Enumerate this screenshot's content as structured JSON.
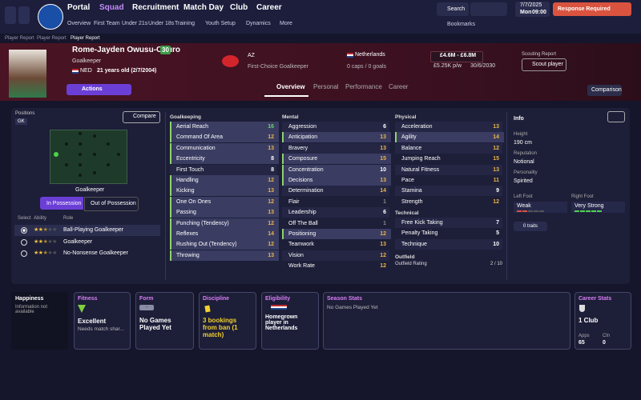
{
  "nav": {
    "menus": [
      "Portal",
      "Squad",
      "Recruitment",
      "Match Day",
      "Club",
      "Career"
    ],
    "submenu": [
      "Overview",
      "First Team",
      "Under 21s",
      "Under 18s",
      "Training",
      "Youth Setup",
      "Dynamics",
      "More"
    ],
    "search": "Search",
    "date": "7/7/2025",
    "day": "Mon",
    "time": "09:00",
    "alert": "Response Required",
    "bookmarks": "Bookmarks"
  },
  "breadcrumb": [
    "Player Report",
    "Player Report",
    "Player Report"
  ],
  "player": {
    "name": "Rome-Jayden Owusu-Oduro",
    "number": 30,
    "position": "Goalkeeper",
    "nationality_code": "NED",
    "age": "21 years old (2/7/2004)",
    "actions": "Actions",
    "club": "AZ",
    "squad_status": "First-Choice Goalkeeper",
    "nation": "Netherlands",
    "caps": "0 caps / 0 goals",
    "value": "£4.6M - £6.8M",
    "wage": "£5.25K p/w",
    "contract": "30/6/2030",
    "scouting_title": "Scouting Report",
    "scout_button": "Scout player"
  },
  "tabs": [
    "Overview",
    "Personal",
    "Performance",
    "Career"
  ],
  "comparison": "Comparison",
  "positions": {
    "title": "Positions",
    "code": "GK",
    "compare": "Compare",
    "pitch_label": "Goalkeeper",
    "toggle": [
      "In Possession",
      "Out of Possession"
    ],
    "headers": [
      "Select",
      "Ability",
      "Role"
    ],
    "roles": [
      {
        "name": "Ball-Playing Goalkeeper",
        "stars": 2.5,
        "selected": true
      },
      {
        "name": "Goalkeeper",
        "stars": 2.5,
        "selected": false
      },
      {
        "name": "No-Nonsense Goalkeeper",
        "stars": 2.5,
        "selected": false
      }
    ]
  },
  "attributes": [
    {
      "title": "Goalkeeping",
      "rows": [
        {
          "name": "Aerial Reach",
          "value": 16,
          "key": true
        },
        {
          "name": "Command Of Area",
          "value": 12,
          "key": true
        },
        {
          "name": "Communication",
          "value": 13,
          "key": true
        },
        {
          "name": "Eccentricity",
          "value": 8,
          "key": true
        },
        {
          "name": "First Touch",
          "value": 8,
          "key": false
        },
        {
          "name": "Handling",
          "value": 12,
          "key": true
        },
        {
          "name": "Kicking",
          "value": 13,
          "key": true
        },
        {
          "name": "One On Ones",
          "value": 12,
          "key": true
        },
        {
          "name": "Passing",
          "value": 13,
          "key": true
        },
        {
          "name": "Punching (Tendency)",
          "value": 12,
          "key": true
        },
        {
          "name": "Reflexes",
          "value": 14,
          "key": true
        },
        {
          "name": "Rushing Out (Tendency)",
          "value": 12,
          "key": true
        },
        {
          "name": "Throwing",
          "value": 13,
          "key": true
        }
      ]
    },
    {
      "title": "Mental",
      "rows": [
        {
          "name": "Aggression",
          "value": 6,
          "key": false
        },
        {
          "name": "Anticipation",
          "value": 13,
          "key": true
        },
        {
          "name": "Bravery",
          "value": 13,
          "key": false
        },
        {
          "name": "Composure",
          "value": 15,
          "key": true
        },
        {
          "name": "Concentration",
          "value": 10,
          "key": true
        },
        {
          "name": "Decisions",
          "value": 13,
          "key": true
        },
        {
          "name": "Determination",
          "value": 14,
          "key": false
        },
        {
          "name": "Flair",
          "value": 1,
          "key": false
        },
        {
          "name": "Leadership",
          "value": 6,
          "key": false
        },
        {
          "name": "Off The Ball",
          "value": 1,
          "key": false
        },
        {
          "name": "Positioning",
          "value": 12,
          "key": true
        },
        {
          "name": "Teamwork",
          "value": 13,
          "key": false
        },
        {
          "name": "Vision",
          "value": 12,
          "key": false
        },
        {
          "name": "Work Rate",
          "value": 12,
          "key": false
        }
      ]
    },
    {
      "title": "Physical",
      "rows": [
        {
          "name": "Acceleration",
          "value": 13,
          "key": false
        },
        {
          "name": "Agility",
          "value": 14,
          "key": true
        },
        {
          "name": "Balance",
          "value": 12,
          "key": false
        },
        {
          "name": "Jumping Reach",
          "value": 15,
          "key": false
        },
        {
          "name": "Natural Fitness",
          "value": 13,
          "key": false
        },
        {
          "name": "Pace",
          "value": 11,
          "key": false
        },
        {
          "name": "Stamina",
          "value": 9,
          "key": false
        },
        {
          "name": "Strength",
          "value": 12,
          "key": false
        }
      ]
    },
    {
      "title": "Technical",
      "rows": [
        {
          "name": "Free Kick Taking",
          "value": 7,
          "key": false
        },
        {
          "name": "Penalty Taking",
          "value": 5,
          "key": false
        },
        {
          "name": "Technique",
          "value": 10,
          "key": false
        }
      ]
    }
  ],
  "outfield": {
    "title": "Outfield",
    "label": "Outfield Rating",
    "rating": "2 / 10"
  },
  "info": {
    "title": "Info",
    "height_label": "Height",
    "height": "190 cm",
    "reputation_label": "Reputation",
    "reputation": "Notional",
    "personality_label": "Personality",
    "personality": "Spirited",
    "left_foot_label": "Left Foot",
    "left_foot": "Weak",
    "right_foot_label": "Right Foot",
    "right_foot": "Very Strong",
    "traits": "0 traits"
  },
  "cards": {
    "happiness": {
      "title": "Happiness",
      "text": "Information not available"
    },
    "fitness": {
      "title": "Fitness",
      "status": "Excellent",
      "note": "Needs match shar..."
    },
    "form": {
      "title": "Form",
      "badge": "-",
      "text": "No Games Played Yet"
    },
    "discipline": {
      "title": "Discipline",
      "text": "3 bookings from ban (1 match)"
    },
    "eligibility": {
      "title": "Eligibility",
      "text": "Homegrown player in Netherlands"
    },
    "season": {
      "title": "Season Stats",
      "text": "No Games Played Yet"
    },
    "career": {
      "title": "Career Stats",
      "clubs": "1 Club",
      "apps_label": "Apps",
      "apps": 65,
      "clean_label": "Cln",
      "clean": 0
    }
  }
}
